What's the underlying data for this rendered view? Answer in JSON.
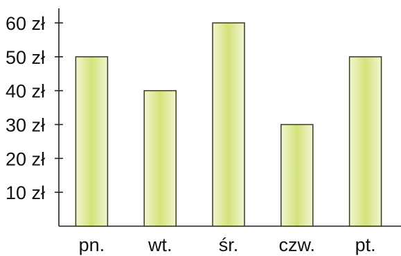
{
  "chart_data": {
    "type": "bar",
    "title": "",
    "xlabel": "",
    "ylabel": "",
    "categories": [
      "pn.",
      "wt.",
      "śr.",
      "czw.",
      "pt."
    ],
    "values": [
      50,
      40,
      60,
      30,
      50
    ],
    "ylim": [
      0,
      60
    ],
    "yticks": [
      10,
      20,
      30,
      40,
      50,
      60
    ],
    "ytick_labels": [
      "10 zł",
      "20 zł",
      "30 zł",
      "40 zł",
      "50 zł",
      "60 zł"
    ],
    "grid": false,
    "bar_colors": {
      "edge": "#f2f5d3",
      "center": "#d4e27a",
      "outline": "#3a3a1a"
    }
  }
}
